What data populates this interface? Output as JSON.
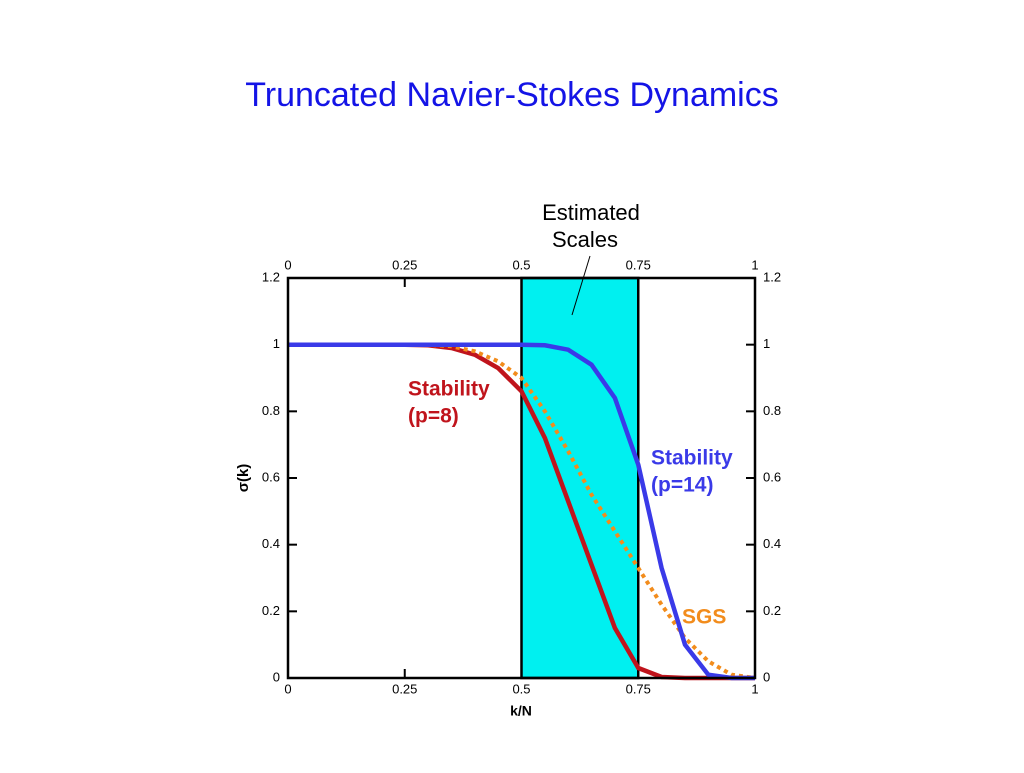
{
  "chart_data": {
    "type": "line",
    "title": "Truncated Navier-Stokes Dynamics",
    "x_label": "k/N",
    "y_label": "σ(k)",
    "x": [
      0,
      0.05,
      0.1,
      0.15,
      0.2,
      0.25,
      0.3,
      0.35,
      0.4,
      0.45,
      0.5,
      0.55,
      0.6,
      0.65,
      0.7,
      0.75,
      0.8,
      0.85,
      0.9,
      0.95,
      1
    ],
    "series": [
      {
        "label": [
          "Stability",
          "(p=8)"
        ],
        "color": "#c0141c",
        "dashed": false,
        "values": [
          1,
          1,
          1,
          1,
          1,
          1,
          0.998,
          0.99,
          0.97,
          0.93,
          0.86,
          0.72,
          0.53,
          0.34,
          0.15,
          0.03,
          0.003,
          0,
          0,
          0,
          0
        ]
      },
      {
        "label": [
          "SGS"
        ],
        "color": "#f28c1c",
        "dashed": true,
        "values": [
          1,
          1,
          1,
          1,
          1,
          1,
          1,
          0.995,
          0.98,
          0.95,
          0.9,
          0.8,
          0.68,
          0.55,
          0.44,
          0.33,
          0.22,
          0.12,
          0.05,
          0.01,
          0
        ]
      },
      {
        "label": [
          "Stability",
          "(p=14)"
        ],
        "color": "#3a3ae8",
        "dashed": false,
        "values": [
          1,
          1,
          1,
          1,
          1,
          1,
          1,
          1,
          1,
          1,
          1,
          0.998,
          0.985,
          0.94,
          0.84,
          0.64,
          0.33,
          0.1,
          0.01,
          0,
          0
        ]
      }
    ],
    "shaded_region": {
      "x": [
        0.5,
        0.75
      ],
      "color": "#00f0f0"
    },
    "annotation": [
      "Estimated",
      "Scales"
    ],
    "xlim": [
      0,
      1
    ],
    "xticks": [
      0,
      0.25,
      0.5,
      0.75,
      1
    ],
    "ylim": [
      0,
      1.2
    ],
    "yticks": [
      0,
      0.2,
      0.4,
      0.6,
      0.8,
      1,
      1.2
    ]
  }
}
